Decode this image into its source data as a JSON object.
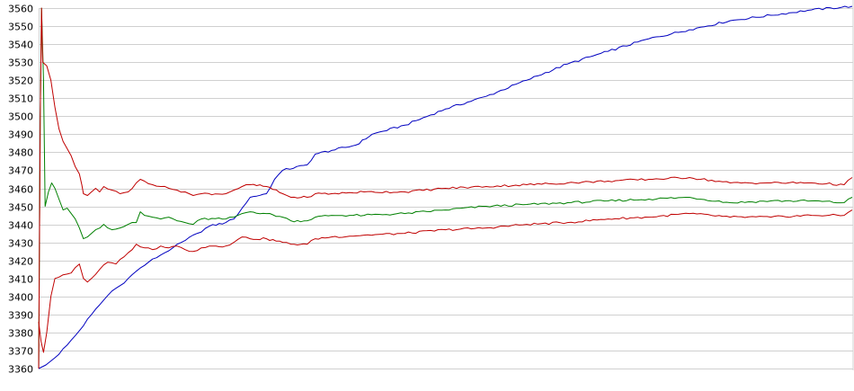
{
  "chart_data": {
    "type": "line",
    "title": "",
    "xlabel": "",
    "ylabel": "",
    "x_range": [
      0,
      100
    ],
    "ylim": [
      3360,
      3560
    ],
    "yticks": [
      3360,
      3370,
      3380,
      3390,
      3400,
      3410,
      3420,
      3430,
      3440,
      3450,
      3460,
      3470,
      3480,
      3490,
      3500,
      3510,
      3520,
      3530,
      3540,
      3550,
      3560
    ],
    "grid": true,
    "legend": "none",
    "series": [
      {
        "color": "#0000c0",
        "points": [
          [
            0,
            3360
          ],
          [
            0.9,
            3362
          ],
          [
            2,
            3366
          ],
          [
            3.5,
            3373
          ],
          [
            5,
            3381
          ],
          [
            6.5,
            3390
          ],
          [
            8,
            3398
          ],
          [
            9,
            3403
          ],
          [
            10,
            3406
          ],
          [
            11,
            3410
          ],
          [
            12,
            3414
          ],
          [
            13.5,
            3419
          ],
          [
            15,
            3423
          ],
          [
            16.5,
            3427
          ],
          [
            18,
            3431
          ],
          [
            19.5,
            3435
          ],
          [
            21,
            3439
          ],
          [
            23,
            3441
          ],
          [
            24,
            3443
          ],
          [
            25,
            3449
          ],
          [
            26,
            3455
          ],
          [
            28,
            3457
          ],
          [
            29,
            3465
          ],
          [
            30,
            3470
          ],
          [
            33,
            3473
          ],
          [
            34,
            3479
          ],
          [
            36,
            3481
          ],
          [
            39,
            3484
          ],
          [
            41,
            3490
          ],
          [
            45,
            3495
          ],
          [
            50,
            3504
          ],
          [
            55,
            3511
          ],
          [
            60,
            3520
          ],
          [
            65,
            3529
          ],
          [
            70,
            3536
          ],
          [
            75,
            3543
          ],
          [
            80,
            3548
          ],
          [
            85,
            3553
          ],
          [
            90,
            3556
          ],
          [
            95,
            3559
          ],
          [
            100,
            3561
          ]
        ]
      },
      {
        "color": "#008000",
        "points": [
          [
            0,
            3360
          ],
          [
            0.2,
            3500
          ],
          [
            0.35,
            3560
          ],
          [
            0.6,
            3520
          ],
          [
            0.8,
            3450
          ],
          [
            1.2,
            3458
          ],
          [
            1.6,
            3463
          ],
          [
            2,
            3460
          ],
          [
            2.5,
            3454
          ],
          [
            3,
            3448
          ],
          [
            3.5,
            3449
          ],
          [
            4,
            3446
          ],
          [
            4.5,
            3443
          ],
          [
            5,
            3438
          ],
          [
            5.5,
            3432
          ],
          [
            6,
            3433
          ],
          [
            6.5,
            3435
          ],
          [
            7,
            3437
          ],
          [
            8,
            3440
          ],
          [
            9,
            3437
          ],
          [
            10,
            3438
          ],
          [
            11,
            3440
          ],
          [
            12,
            3441
          ],
          [
            12.5,
            3447
          ],
          [
            13,
            3445
          ],
          [
            14,
            3444
          ],
          [
            15,
            3443
          ],
          [
            16,
            3444
          ],
          [
            17,
            3442
          ],
          [
            18,
            3441
          ],
          [
            19,
            3440
          ],
          [
            20,
            3443
          ],
          [
            23,
            3443
          ],
          [
            24,
            3444
          ],
          [
            25,
            3446
          ],
          [
            26,
            3447
          ],
          [
            28,
            3446
          ],
          [
            30,
            3444
          ],
          [
            31,
            3442
          ],
          [
            33,
            3442
          ],
          [
            34,
            3444
          ],
          [
            36,
            3445
          ],
          [
            40,
            3445
          ],
          [
            45,
            3446
          ],
          [
            50,
            3448
          ],
          [
            55,
            3450
          ],
          [
            60,
            3451
          ],
          [
            65,
            3452
          ],
          [
            70,
            3453
          ],
          [
            75,
            3454
          ],
          [
            80,
            3455
          ],
          [
            85,
            3452
          ],
          [
            90,
            3453
          ],
          [
            95,
            3453
          ],
          [
            99,
            3452
          ],
          [
            100,
            3455
          ]
        ]
      },
      {
        "color": "#c00000",
        "points": [
          [
            0,
            3386
          ],
          [
            0.3,
            3375
          ],
          [
            0.6,
            3369
          ],
          [
            1,
            3380
          ],
          [
            1.5,
            3400
          ],
          [
            2,
            3410
          ],
          [
            3,
            3412
          ],
          [
            4,
            3413
          ],
          [
            4.5,
            3416
          ],
          [
            5,
            3418
          ],
          [
            5.5,
            3410
          ],
          [
            6,
            3408
          ],
          [
            6.5,
            3410
          ],
          [
            7.5,
            3415
          ],
          [
            8.5,
            3419
          ],
          [
            9.5,
            3418
          ],
          [
            10.5,
            3422
          ],
          [
            11.5,
            3426
          ],
          [
            12,
            3429
          ],
          [
            13,
            3427
          ],
          [
            14,
            3426
          ],
          [
            15,
            3428
          ],
          [
            16,
            3427
          ],
          [
            17,
            3428
          ],
          [
            18,
            3426
          ],
          [
            19,
            3425
          ],
          [
            20,
            3427
          ],
          [
            21,
            3428
          ],
          [
            23,
            3428
          ],
          [
            24,
            3430
          ],
          [
            25,
            3433
          ],
          [
            26,
            3432
          ],
          [
            28,
            3432
          ],
          [
            30,
            3430
          ],
          [
            31,
            3429
          ],
          [
            33,
            3429
          ],
          [
            34,
            3432
          ],
          [
            36,
            3433
          ],
          [
            40,
            3434
          ],
          [
            45,
            3435
          ],
          [
            50,
            3437
          ],
          [
            55,
            3438
          ],
          [
            60,
            3440
          ],
          [
            65,
            3441
          ],
          [
            70,
            3443
          ],
          [
            75,
            3444
          ],
          [
            80,
            3446
          ],
          [
            85,
            3444
          ],
          [
            90,
            3444
          ],
          [
            95,
            3445
          ],
          [
            99,
            3445
          ],
          [
            100,
            3448
          ]
        ]
      },
      {
        "color": "#c00000",
        "points": [
          [
            0,
            3360
          ],
          [
            0.2,
            3500
          ],
          [
            0.35,
            3560
          ],
          [
            0.5,
            3530
          ],
          [
            1,
            3528
          ],
          [
            1.5,
            3520
          ],
          [
            2,
            3505
          ],
          [
            2.5,
            3493
          ],
          [
            3,
            3486
          ],
          [
            3.5,
            3482
          ],
          [
            4,
            3478
          ],
          [
            4.5,
            3472
          ],
          [
            5,
            3468
          ],
          [
            5.3,
            3462
          ],
          [
            5.5,
            3457
          ],
          [
            6,
            3456
          ],
          [
            6.5,
            3458
          ],
          [
            7,
            3460
          ],
          [
            7.5,
            3458
          ],
          [
            8,
            3461
          ],
          [
            9,
            3459
          ],
          [
            10,
            3457
          ],
          [
            11,
            3458
          ],
          [
            12,
            3463
          ],
          [
            12.5,
            3465
          ],
          [
            13,
            3464
          ],
          [
            14,
            3462
          ],
          [
            15,
            3461
          ],
          [
            16,
            3460
          ],
          [
            17,
            3459
          ],
          [
            18,
            3458
          ],
          [
            19,
            3456
          ],
          [
            20,
            3457
          ],
          [
            23,
            3457
          ],
          [
            24,
            3459
          ],
          [
            25,
            3461
          ],
          [
            26,
            3462
          ],
          [
            28,
            3461
          ],
          [
            30,
            3457
          ],
          [
            31,
            3455
          ],
          [
            33,
            3455
          ],
          [
            34,
            3457
          ],
          [
            36,
            3457
          ],
          [
            40,
            3458
          ],
          [
            45,
            3458
          ],
          [
            50,
            3460
          ],
          [
            55,
            3461
          ],
          [
            60,
            3462
          ],
          [
            65,
            3463
          ],
          [
            70,
            3464
          ],
          [
            75,
            3465
          ],
          [
            80,
            3466
          ],
          [
            85,
            3463
          ],
          [
            90,
            3463
          ],
          [
            95,
            3463
          ],
          [
            99,
            3462
          ],
          [
            100,
            3466
          ]
        ]
      }
    ]
  }
}
